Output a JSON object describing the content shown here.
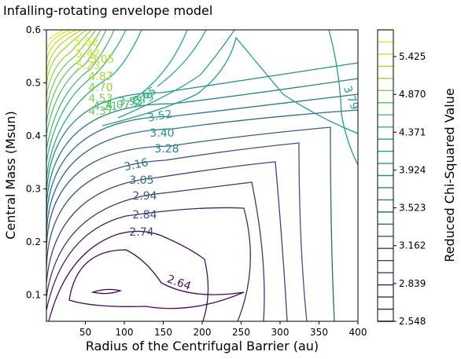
{
  "chart_data": {
    "type": "contour",
    "title": "Infalling-rotating envelope model",
    "xlabel": "Radius of the Centrifugal Barrier (au)",
    "ylabel": "Central Mass (Msun)",
    "colorbar_label": "Reduced Chi-Squared Value",
    "xlim": [
      0,
      400
    ],
    "ylim": [
      0.05,
      0.6
    ],
    "x_ticks": [
      50,
      100,
      150,
      200,
      250,
      300,
      350,
      400
    ],
    "y_ticks": [
      0.1,
      0.2,
      0.3,
      0.4,
      0.5,
      0.6
    ],
    "x_tick_labels": [
      "50",
      "100",
      "150",
      "200",
      "250",
      "300",
      "350",
      "400"
    ],
    "y_tick_labels": [
      "0.1",
      "0.2",
      "0.3",
      "0.4",
      "0.5",
      "0.6"
    ],
    "colorbar_ticks": [
      "5.425",
      "4.870",
      "4.371",
      "3.924",
      "3.523",
      "3.162",
      "2.839",
      "2.548"
    ],
    "contour_labels": [
      "5.62",
      "5.42",
      "5.23",
      "5.05",
      "4.87",
      "4.70",
      "4.53",
      "4.37",
      "4.21",
      "4.07",
      "3.93",
      "3.79",
      "3.65",
      "3.52",
      "3.40",
      "3.28",
      "3.16",
      "3.05",
      "2.94",
      "2.84",
      "2.74",
      "2.64",
      "3.79"
    ],
    "colormap": [
      "#440154",
      "#472d7b",
      "#3b528b",
      "#2c728e",
      "#21918c",
      "#28ae80",
      "#5ec962",
      "#addc30",
      "#fde725"
    ]
  }
}
